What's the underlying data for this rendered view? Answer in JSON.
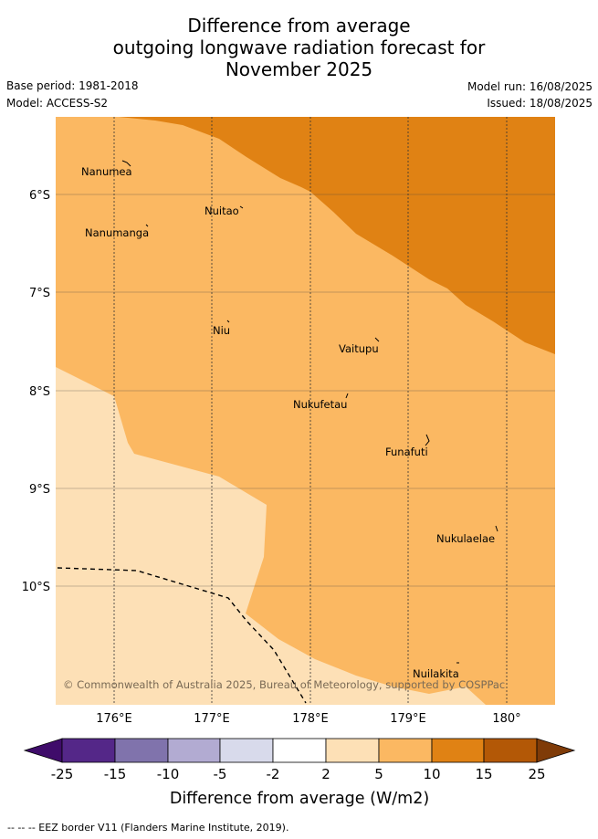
{
  "title": {
    "line1": "Difference from average",
    "line2": "outgoing longwave radiation forecast for",
    "line3": "November 2025"
  },
  "meta": {
    "base_period": "Base period: 1981-2018",
    "model": "Model: ACCESS-S2",
    "model_run": "Model run: 16/08/2025",
    "issued": "Issued: 18/08/2025"
  },
  "map": {
    "lat_labels": [
      "6°S",
      "7°S",
      "8°S",
      "9°S",
      "10°S"
    ],
    "lon_labels": [
      "176°E",
      "177°E",
      "178°E",
      "179°E",
      "180°"
    ],
    "places": [
      "Nanumea",
      "Nuitao",
      "Nanumanga",
      "Niu",
      "Vaitupu",
      "Nukufetau",
      "Funafuti",
      "Nukulaelae",
      "Nuilakita"
    ],
    "credit": "© Commonwealth of Australia 2025, Bureau of Meteorology, supported by COSPPac",
    "colors": {
      "c2_5": "#fde0b6",
      "c5_10": "#fbb862",
      "c10_15": "#e08214"
    }
  },
  "colorbar": {
    "ticks": [
      "-25",
      "-15",
      "-10",
      "-5",
      "-2",
      "2",
      "5",
      "10",
      "15",
      "25"
    ],
    "label": "Difference from average (W/m2)",
    "colors": [
      "#3f0c6a",
      "#542788",
      "#8073ac",
      "#b2abd2",
      "#d8daeb",
      "#ffffff",
      "#fde0b6",
      "#fbb862",
      "#e08214",
      "#b35806",
      "#7f3b08"
    ]
  },
  "legend": {
    "eez": "--  --  -- EEZ border V11 (Flanders Marine Institute, 2019)."
  }
}
